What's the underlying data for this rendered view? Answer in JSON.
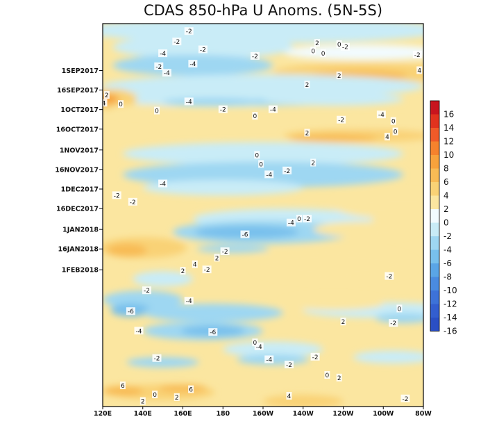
{
  "chart_data": {
    "type": "heatmap",
    "title": "CDAS 850-hPa U Anoms. (5N-5S)",
    "xlabel": "",
    "ylabel": "",
    "x_ticks": [
      "120E",
      "140E",
      "160E",
      "180",
      "160W",
      "140W",
      "120W",
      "100W",
      "80W"
    ],
    "y_ticks": [
      "1SEP2017",
      "16SEP2017",
      "1OCT2017",
      "16OCT2017",
      "1NOV2017",
      "16NOV2017",
      "1DEC2017",
      "16DEC2017",
      "1JAN2018",
      "16JAN2018",
      "1FEB2018"
    ],
    "colorbar": {
      "levels": [
        16,
        14,
        12,
        10,
        8,
        6,
        4,
        2,
        0,
        -2,
        -4,
        -6,
        -8,
        -10,
        -12,
        -14,
        -16
      ],
      "colors": [
        "#c8141e",
        "#e1321e",
        "#f05a28",
        "#f5822d",
        "#f7a23c",
        "#f8bb55",
        "#f9d276",
        "#fbe6a0",
        "#f2fbff",
        "#c9ecf7",
        "#9ed7f2",
        "#78c0ec",
        "#5aa5e6",
        "#4a8be0",
        "#3d72d8",
        "#335ecf",
        "#2a4fc4"
      ]
    },
    "contour_labels": [
      {
        "v": "-2",
        "lon": 163,
        "t": 6
      },
      {
        "v": "-2",
        "lon": 157,
        "t": 14
      },
      {
        "v": "-2",
        "lon": 170,
        "t": 20
      },
      {
        "v": "-4",
        "lon": 150,
        "t": 23
      },
      {
        "v": "-2",
        "lon": 196,
        "t": 25
      },
      {
        "v": "-2",
        "lon": 148,
        "t": 33
      },
      {
        "v": "-4",
        "lon": 165,
        "t": 31
      },
      {
        "v": "-4",
        "lon": 152,
        "t": 38
      },
      {
        "v": "-2",
        "lon": 241,
        "t": 18
      },
      {
        "v": "-2",
        "lon": 277,
        "t": 24
      },
      {
        "v": "-4",
        "lon": 163,
        "t": 60
      },
      {
        "v": "-2",
        "lon": 180,
        "t": 66
      },
      {
        "v": "-4",
        "lon": 205,
        "t": 66
      },
      {
        "v": "-2",
        "lon": 239,
        "t": 74
      },
      {
        "v": "-4",
        "lon": 259,
        "t": 70
      },
      {
        "v": "-4",
        "lon": 203,
        "t": 116
      },
      {
        "v": "-2",
        "lon": 212,
        "t": 113
      },
      {
        "v": "-4",
        "lon": 150,
        "t": 123
      },
      {
        "v": "-2",
        "lon": 127,
        "t": 132
      },
      {
        "v": "-2",
        "lon": 135,
        "t": 137
      },
      {
        "v": "-6",
        "lon": 191,
        "t": 162
      },
      {
        "v": "-4",
        "lon": 214,
        "t": 153
      },
      {
        "v": "-2",
        "lon": 222,
        "t": 150
      },
      {
        "v": "-2",
        "lon": 172,
        "t": 189
      },
      {
        "v": "-2",
        "lon": 181,
        "t": 175
      },
      {
        "v": "-4",
        "lon": 163,
        "t": 213
      },
      {
        "v": "-2",
        "lon": 142,
        "t": 205
      },
      {
        "v": "-6",
        "lon": 134,
        "t": 221
      },
      {
        "v": "-4",
        "lon": 138,
        "t": 236
      },
      {
        "v": "-6",
        "lon": 175,
        "t": 237
      },
      {
        "v": "-4",
        "lon": 198,
        "t": 248
      },
      {
        "v": "-4",
        "lon": 203,
        "t": 258
      },
      {
        "v": "-2",
        "lon": 213,
        "t": 262
      },
      {
        "v": "-2",
        "lon": 226,
        "t": 256
      },
      {
        "v": "-2",
        "lon": 263,
        "t": 194
      },
      {
        "v": "-2",
        "lon": 271,
        "t": 288
      },
      {
        "v": "-2",
        "lon": 265,
        "t": 230
      },
      {
        "v": "-2",
        "lon": 147,
        "t": 257
      },
      {
        "v": "2",
        "lon": 227,
        "t": 15
      },
      {
        "v": "4",
        "lon": 278,
        "t": 36
      },
      {
        "v": "2",
        "lon": 238,
        "t": 40
      },
      {
        "v": "2",
        "lon": 222,
        "t": 47
      },
      {
        "v": "4",
        "lon": 262,
        "t": 87
      },
      {
        "v": "2",
        "lon": 222,
        "t": 84
      },
      {
        "v": "2",
        "lon": 225,
        "t": 107
      },
      {
        "v": "2",
        "lon": 122,
        "t": 55
      },
      {
        "v": "-4",
        "lon": 120,
        "t": 61
      },
      {
        "v": "4",
        "lon": 166,
        "t": 185
      },
      {
        "v": "2",
        "lon": 177,
        "t": 180
      },
      {
        "v": "2",
        "lon": 240,
        "t": 229
      },
      {
        "v": "2",
        "lon": 238,
        "t": 272
      },
      {
        "v": "4",
        "lon": 213,
        "t": 286
      },
      {
        "v": "6",
        "lon": 130,
        "t": 278
      },
      {
        "v": "6",
        "lon": 164,
        "t": 281
      },
      {
        "v": "2",
        "lon": 157,
        "t": 287
      },
      {
        "v": "2",
        "lon": 140,
        "t": 290
      },
      {
        "v": "2",
        "lon": 160,
        "t": 190
      },
      {
        "v": "2",
        "lon": 291,
        "t": 209
      },
      {
        "v": "0",
        "lon": 238,
        "t": 16
      },
      {
        "v": "0",
        "lon": 225,
        "t": 21
      },
      {
        "v": "0",
        "lon": 284,
        "t": 21
      },
      {
        "v": "0",
        "lon": 230,
        "t": 23
      },
      {
        "v": "0",
        "lon": 129,
        "t": 62
      },
      {
        "v": "0",
        "lon": 147,
        "t": 67
      },
      {
        "v": "0",
        "lon": 196,
        "t": 71
      },
      {
        "v": "0",
        "lon": 265,
        "t": 75
      },
      {
        "v": "0",
        "lon": 266,
        "t": 83
      },
      {
        "v": "0",
        "lon": 197,
        "t": 101
      },
      {
        "v": "0",
        "lon": 199,
        "t": 108
      },
      {
        "v": "0",
        "lon": 218,
        "t": 150
      },
      {
        "v": "0",
        "lon": 268,
        "t": 219
      },
      {
        "v": "0",
        "lon": 196,
        "t": 245
      },
      {
        "v": "0",
        "lon": 146,
        "t": 285
      },
      {
        "v": "0",
        "lon": 232,
        "t": 270
      }
    ]
  }
}
